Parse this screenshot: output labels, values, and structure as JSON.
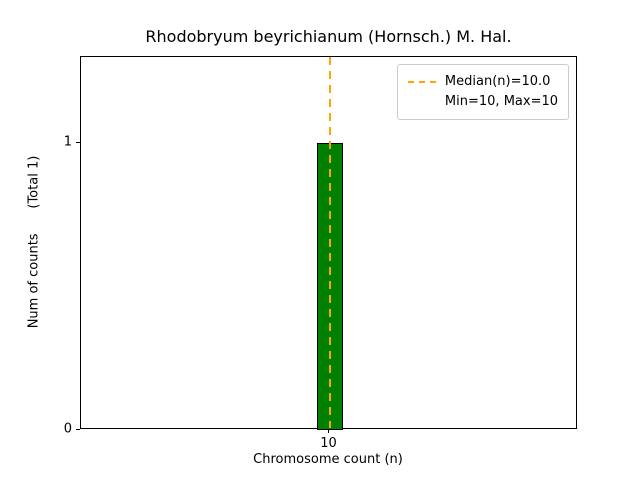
{
  "chart_data": {
    "type": "bar",
    "title": "Rhodobryum beyrichianum (Hornsch.) M. Hal.",
    "xlabel": "Chromosome count (n)",
    "ylabel": "Num of counts      (Total 1)",
    "categories": [
      "10"
    ],
    "x_numeric": [
      10
    ],
    "values": [
      1
    ],
    "xlim": [
      9,
      11
    ],
    "ylim": [
      0,
      1.3
    ],
    "yticks": [
      "0",
      "1"
    ],
    "ytick_values": [
      0,
      1
    ],
    "bar_color": "#008000",
    "bar_edge_color": "#000000",
    "median": 10.0,
    "median_line_color": "#ffa500",
    "grid": false,
    "legend_position": "upper right",
    "legend": [
      {
        "label": "Median(n)=10.0",
        "swatch": "dashed-line"
      },
      {
        "label": "Min=10, Max=10",
        "swatch": "none"
      }
    ]
  }
}
